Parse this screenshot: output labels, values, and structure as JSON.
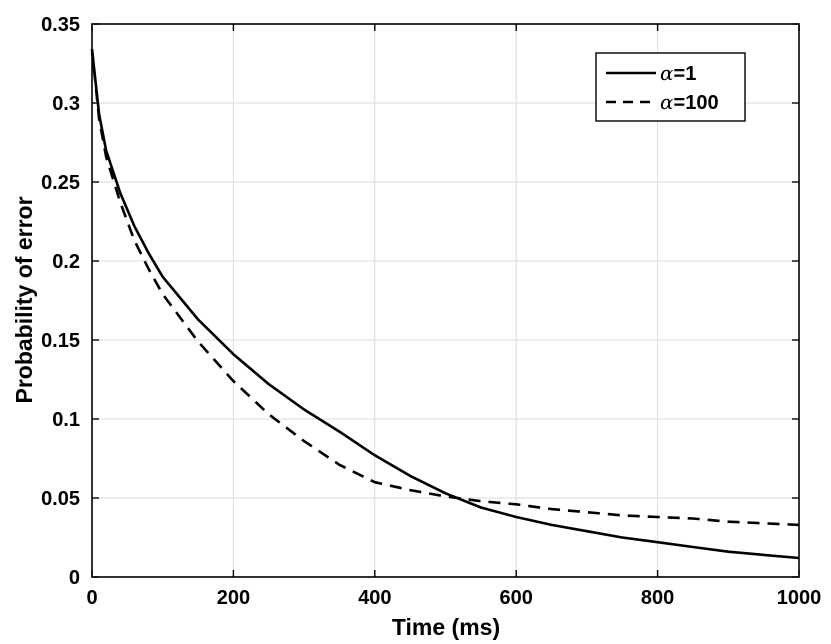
{
  "chart_data": {
    "type": "line",
    "xlabel": "Time (ms)",
    "ylabel": "Probability of error",
    "xlim": [
      0,
      1000
    ],
    "ylim": [
      0,
      0.35
    ],
    "xticks": [
      "0",
      "200",
      "400",
      "600",
      "800",
      "1000"
    ],
    "yticks": [
      "0",
      "0.05",
      "0.1",
      "0.15",
      "0.2",
      "0.25",
      "0.3",
      "0.35"
    ],
    "grid": true,
    "legend_position": "top-right",
    "series": [
      {
        "name": "α=1",
        "symbol": "α",
        "suffix": "=1",
        "style": "solid",
        "color": "#000000",
        "x": [
          0,
          10,
          20,
          40,
          60,
          80,
          100,
          150,
          200,
          250,
          300,
          350,
          400,
          450,
          500,
          550,
          600,
          650,
          700,
          750,
          800,
          850,
          900,
          950,
          1000
        ],
        "y": [
          0.334,
          0.293,
          0.27,
          0.243,
          0.222,
          0.205,
          0.19,
          0.163,
          0.141,
          0.122,
          0.106,
          0.092,
          0.077,
          0.064,
          0.053,
          0.044,
          0.038,
          0.033,
          0.029,
          0.025,
          0.022,
          0.019,
          0.016,
          0.014,
          0.012
        ]
      },
      {
        "name": "α=100",
        "symbol": "α",
        "suffix": "=100",
        "style": "dashed",
        "color": "#000000",
        "x": [
          0,
          10,
          20,
          40,
          60,
          80,
          100,
          150,
          200,
          250,
          300,
          350,
          400,
          450,
          500,
          550,
          600,
          650,
          700,
          750,
          800,
          850,
          900,
          950,
          1000
        ],
        "y": [
          0.334,
          0.29,
          0.266,
          0.237,
          0.213,
          0.195,
          0.179,
          0.149,
          0.124,
          0.103,
          0.086,
          0.071,
          0.06,
          0.055,
          0.051,
          0.048,
          0.046,
          0.043,
          0.041,
          0.039,
          0.038,
          0.037,
          0.035,
          0.034,
          0.033
        ]
      }
    ]
  }
}
